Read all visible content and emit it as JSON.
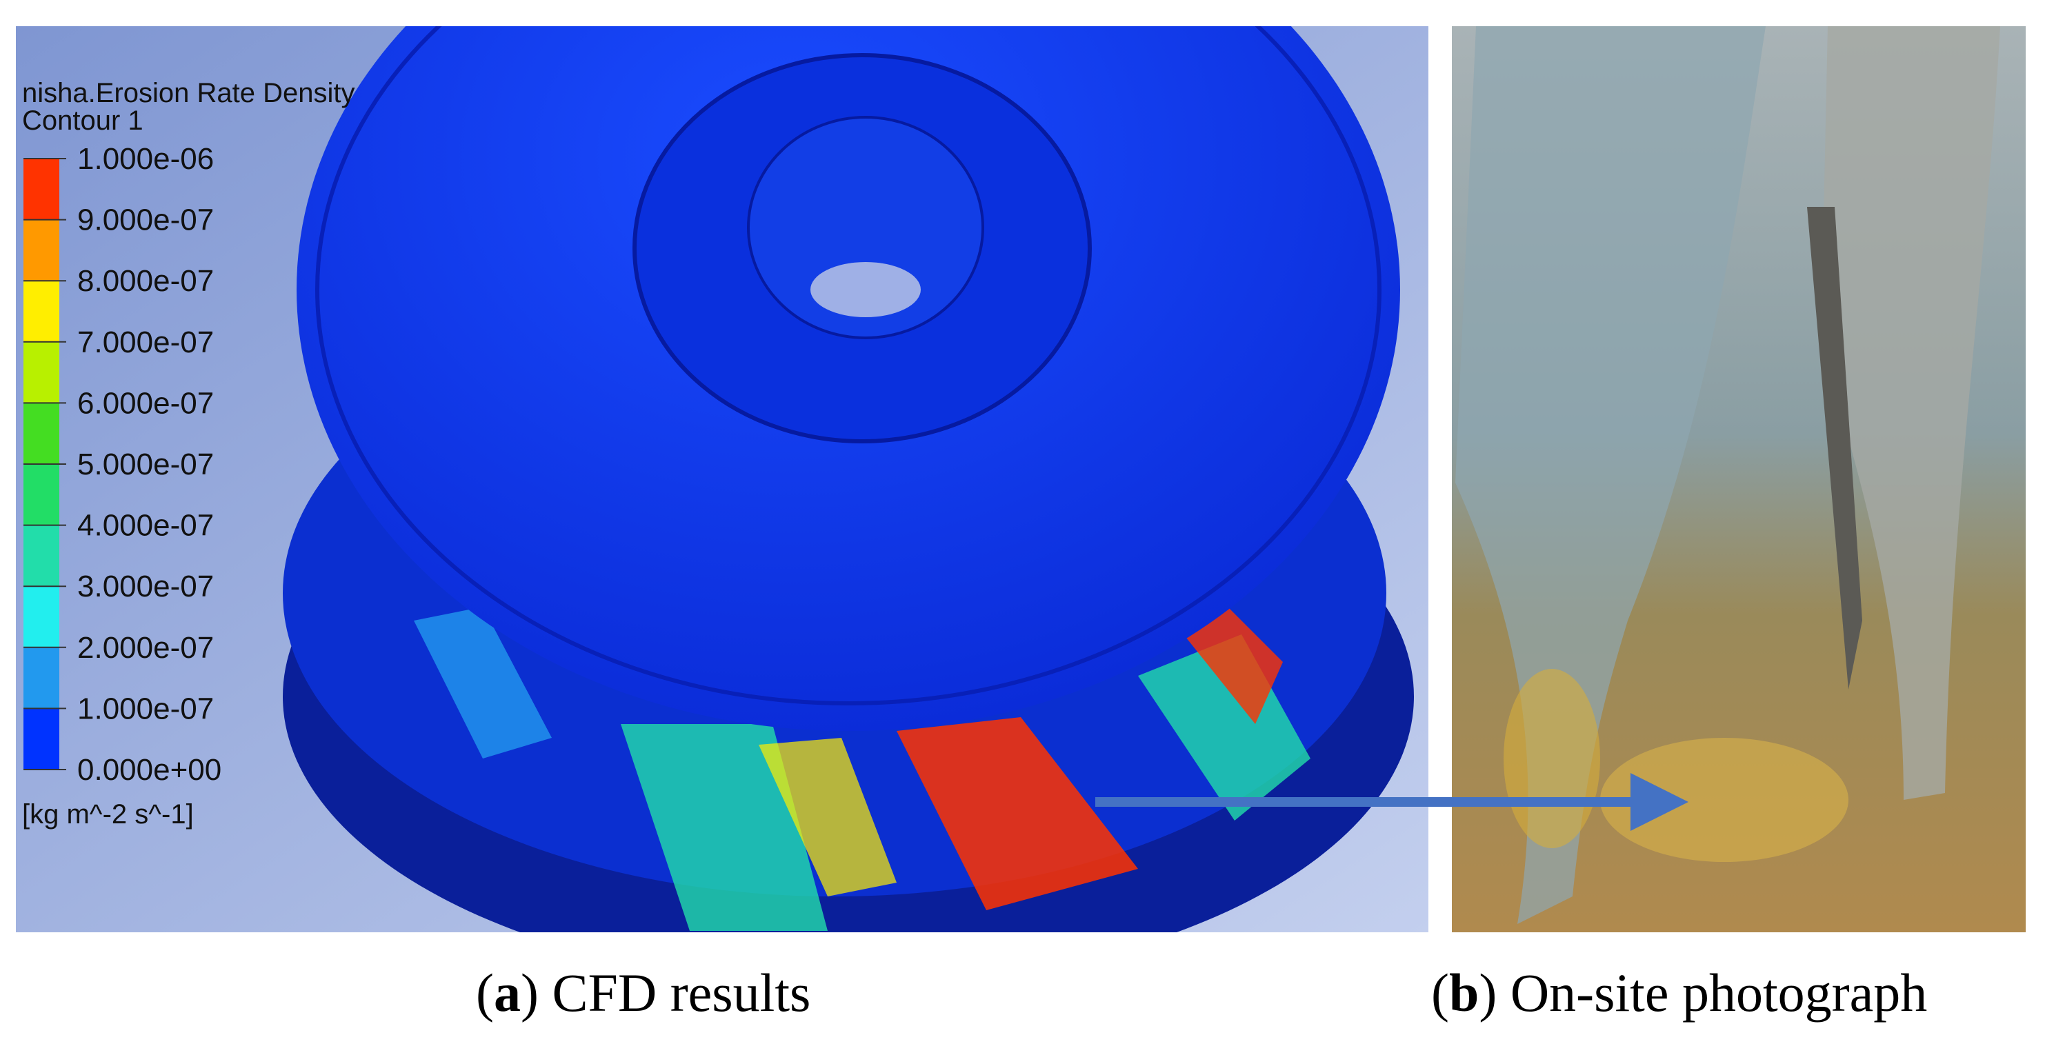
{
  "legend": {
    "title": "nisha.Erosion Rate Density",
    "subtitle": "Contour 1",
    "labels": [
      "1.000e-06",
      "9.000e-07",
      "8.000e-07",
      "7.000e-07",
      "6.000e-07",
      "5.000e-07",
      "4.000e-07",
      "3.000e-07",
      "2.000e-07",
      "1.000e-07",
      "0.000e+00"
    ],
    "colors": [
      "#ff3300",
      "#ff9900",
      "#ffee00",
      "#b8f000",
      "#44dd22",
      "#22dd66",
      "#22ddaa",
      "#22eeee",
      "#2299ee",
      "#0033ff"
    ],
    "unit": "[kg m^-2 s^-1]"
  },
  "captions": [
    {
      "open": "(",
      "label": "a",
      "text": ") CFD results"
    },
    {
      "open": "(",
      "label": "b",
      "text": ") On-site photograph"
    }
  ]
}
